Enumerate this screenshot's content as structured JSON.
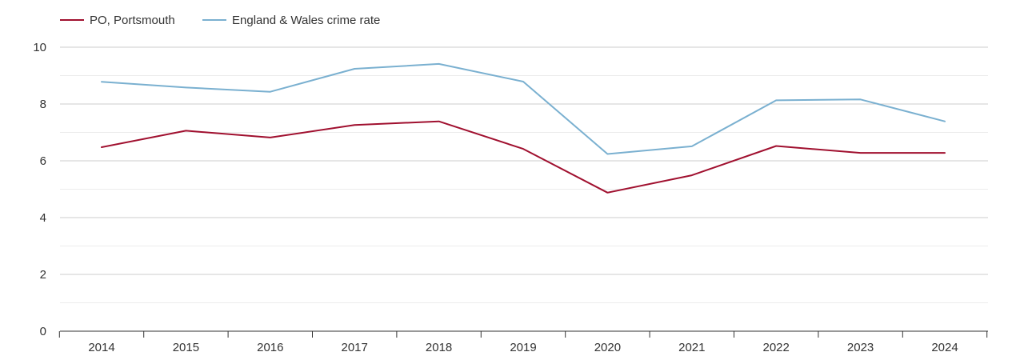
{
  "chart_data": {
    "type": "line",
    "title": "",
    "xlabel": "",
    "ylabel": "",
    "x": [
      2014,
      2015,
      2016,
      2017,
      2018,
      2019,
      2020,
      2021,
      2022,
      2023,
      2024
    ],
    "x_tick_labels": [
      "2014",
      "2015",
      "2016",
      "2017",
      "2018",
      "2019",
      "2020",
      "2021",
      "2022",
      "2023",
      "2024"
    ],
    "ylim": [
      0,
      10
    ],
    "y_ticks": [
      0,
      2,
      4,
      6,
      8,
      10
    ],
    "y_tick_labels": [
      "0",
      "2",
      "4",
      "6",
      "8",
      "10"
    ],
    "y_minor_ticks": [
      1,
      3,
      5,
      7,
      9
    ],
    "grid": true,
    "legend_position": "top-left",
    "series": [
      {
        "name": "PO, Portsmouth",
        "color": "#a0102f",
        "values": [
          6.48,
          7.06,
          6.82,
          7.26,
          7.39,
          6.42,
          4.88,
          5.49,
          6.52,
          6.28,
          6.28
        ]
      },
      {
        "name": "England & Wales crime rate",
        "color": "#7ab0d0",
        "values": [
          8.78,
          8.58,
          8.43,
          9.24,
          9.41,
          8.79,
          6.24,
          6.51,
          8.13,
          8.16,
          7.39
        ]
      }
    ]
  }
}
